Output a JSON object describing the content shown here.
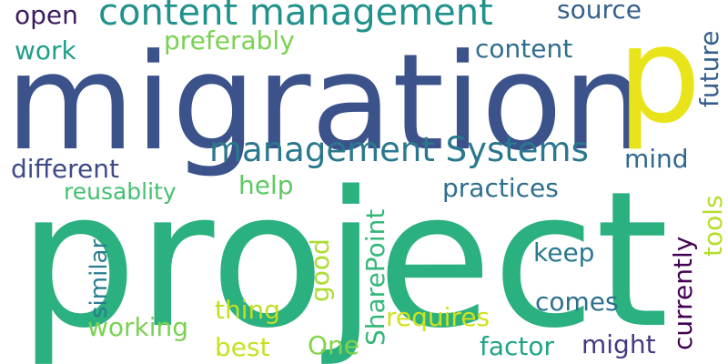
{
  "words": [
    {
      "text": "project",
      "color": "#2bb07f"
    },
    {
      "text": "migration",
      "color": "#3b528b"
    },
    {
      "text": "p",
      "color": "#e8e419"
    },
    {
      "text": "content management",
      "color": "#21918c"
    },
    {
      "text": "management Systems",
      "color": "#2a788e"
    },
    {
      "text": "open",
      "color": "#3b1c5f"
    },
    {
      "text": "source",
      "color": "#34618d"
    },
    {
      "text": "work",
      "color": "#1f9e89"
    },
    {
      "text": "preferably",
      "color": "#7ad151"
    },
    {
      "text": "content",
      "color": "#2e6e8e"
    },
    {
      "text": "future",
      "color": "#355f8d"
    },
    {
      "text": "mind",
      "color": "#31688e"
    },
    {
      "text": "different",
      "color": "#3e4a89"
    },
    {
      "text": "help",
      "color": "#5ec962"
    },
    {
      "text": "reusablity",
      "color": "#44bf70"
    },
    {
      "text": "practices",
      "color": "#2e6e8e"
    },
    {
      "text": "tools",
      "color": "#b5de2b"
    },
    {
      "text": "SharePoint",
      "color": "#35b779"
    },
    {
      "text": "keep",
      "color": "#2a788e"
    },
    {
      "text": "similar",
      "color": "#287d8e"
    },
    {
      "text": "good",
      "color": "#addc30"
    },
    {
      "text": "currently",
      "color": "#440154"
    },
    {
      "text": "thing",
      "color": "#c2df23"
    },
    {
      "text": "comes",
      "color": "#2d708e"
    },
    {
      "text": "working",
      "color": "#7ad151"
    },
    {
      "text": "requires",
      "color": "#d0e11c"
    },
    {
      "text": "best",
      "color": "#c8e020"
    },
    {
      "text": "One",
      "color": "#84d44b"
    },
    {
      "text": "factor",
      "color": "#20a386"
    },
    {
      "text": "might",
      "color": "#443983"
    }
  ]
}
